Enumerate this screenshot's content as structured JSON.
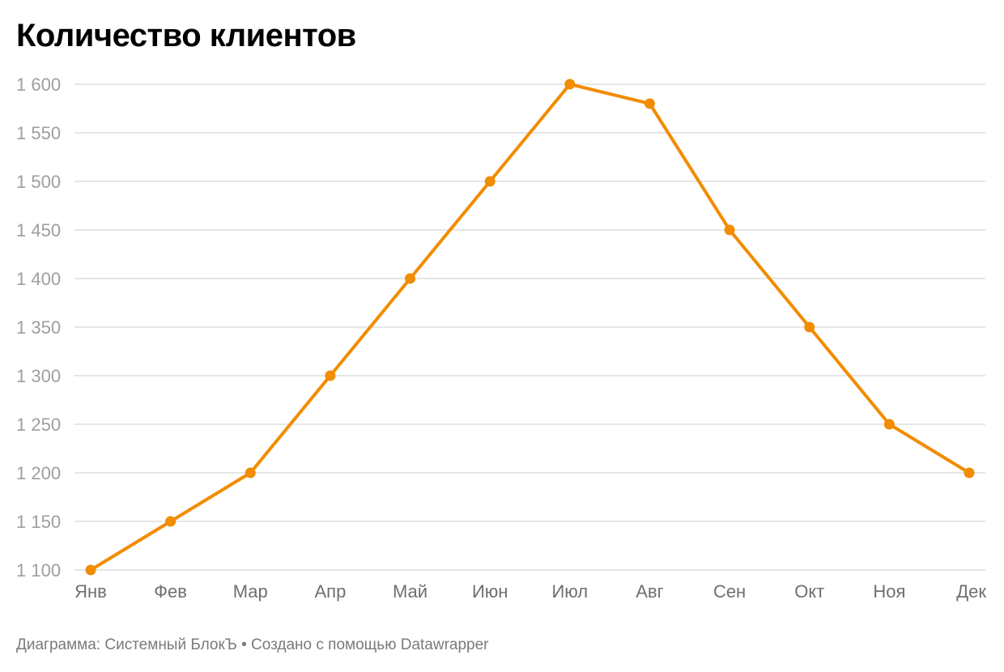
{
  "title": "Количество клиентов",
  "footer": "Диаграмма: Системный БлокЪ • Создано с помощью Datawrapper",
  "colors": {
    "line": "#f28c00",
    "grid": "#e6e6e6",
    "ytick": "#9e9e9e",
    "xtick": "#6f6f6f"
  },
  "chart_data": {
    "type": "line",
    "title": "Количество клиентов",
    "xlabel": "",
    "ylabel": "",
    "categories": [
      "Янв",
      "Фев",
      "Мар",
      "Апр",
      "Май",
      "Июн",
      "Июл",
      "Авг",
      "Сен",
      "Окт",
      "Ноя",
      "Дек"
    ],
    "series": [
      {
        "name": "Количество клиентов",
        "values": [
          1100,
          1150,
          1200,
          1300,
          1400,
          1500,
          1600,
          1580,
          1450,
          1350,
          1250,
          1200
        ]
      }
    ],
    "yticks": [
      1100,
      1150,
      1200,
      1250,
      1300,
      1350,
      1400,
      1450,
      1500,
      1550,
      1600
    ],
    "ytick_labels": [
      "1 100",
      "1 150",
      "1 200",
      "1 250",
      "1 300",
      "1 350",
      "1 400",
      "1 450",
      "1 500",
      "1 550",
      "1 600"
    ],
    "ylim": [
      1100,
      1600
    ],
    "grid": true,
    "legend": "none",
    "markers": true
  }
}
